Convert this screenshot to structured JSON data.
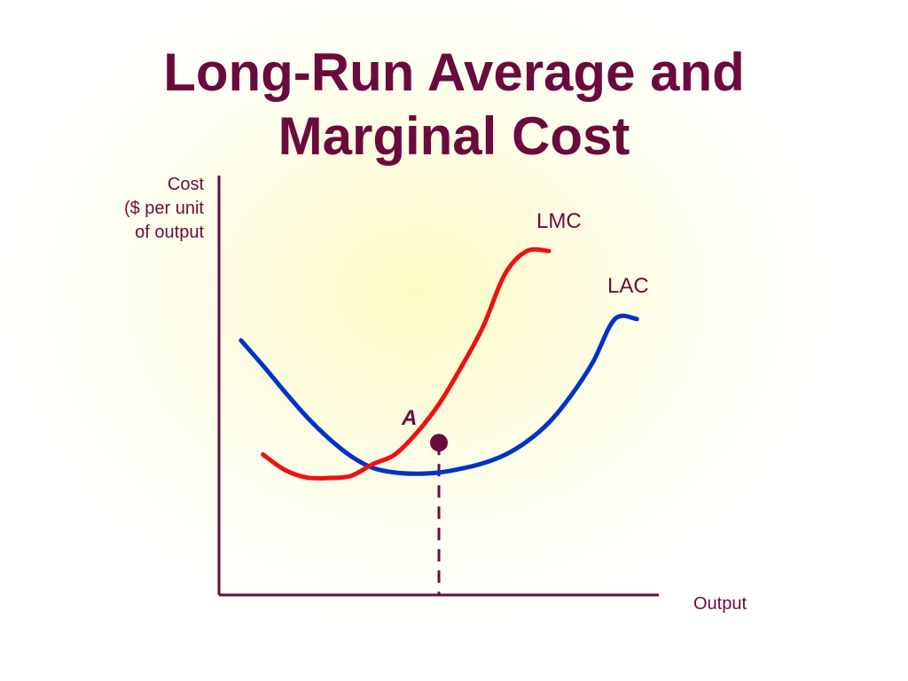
{
  "slide": {
    "title_lines": [
      "Long-Run Average and",
      "Marginal Cost"
    ]
  },
  "chart_data": {
    "type": "line",
    "title": "Long-Run Average and Marginal Cost",
    "ylabel_lines": [
      "Cost",
      "($ per unit",
      "of output"
    ],
    "xlabel": "Output",
    "xlim": [
      0,
      100
    ],
    "ylim": [
      0,
      100
    ],
    "grid": false,
    "ticks": "none",
    "series": [
      {
        "name": "LAC",
        "color": "#0032c8",
        "x": [
          5,
          10,
          15,
          20,
          25,
          30,
          35,
          40,
          45,
          50,
          55,
          60,
          65,
          70,
          75,
          80,
          85,
          90,
          95
        ],
        "y": [
          60.7,
          54.7,
          48.4,
          42.4,
          37.3,
          33.1,
          30.3,
          29.2,
          28.9,
          29.2,
          30.1,
          31.4,
          33.4,
          36.6,
          41.1,
          47.5,
          55.5,
          65.8,
          65.8
        ]
      },
      {
        "name": "LMC",
        "color": "#ee1111",
        "x": [
          10,
          15,
          20,
          25,
          30,
          35,
          40,
          45,
          50,
          55,
          60,
          65,
          70,
          75
        ],
        "y": [
          33.5,
          29.8,
          28.0,
          27.9,
          28.4,
          31.2,
          33.5,
          38.7,
          45.5,
          54.2,
          63.9,
          76.5,
          82.0,
          82.0
        ]
      }
    ],
    "annotations": [
      {
        "label": "A",
        "x": 50,
        "y": 36.3,
        "type": "point",
        "note": "LMC intersects LAC at minimum of LAC"
      }
    ],
    "curve_labels": {
      "lmc": "LMC",
      "lac": "LAC"
    },
    "point_label": "A",
    "colors": {
      "axis": "#6b0a3c",
      "text": "#6b0a3c",
      "lac": "#0032c8",
      "lmc": "#ee1111",
      "dashed": "#6b0a3c",
      "point": "#6b0a3c"
    }
  }
}
